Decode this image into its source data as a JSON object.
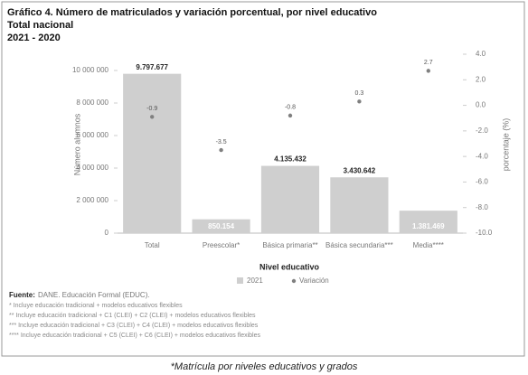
{
  "chart_data": {
    "type": "bar",
    "title": "Gráfico 4. Número de matriculados y variación porcentual, por nivel educativo",
    "subtitle": [
      "Total nacional",
      "2021 - 2020"
    ],
    "categories": [
      "Total",
      "Preescolar*",
      "Básica primaria**",
      "Básica secundaria***",
      "Media****"
    ],
    "series": [
      {
        "name": "2021",
        "color": "#cfcfcf",
        "values": [
          9797677,
          850154,
          4135432,
          3430642,
          1381469
        ],
        "value_labels": [
          "9.797.677",
          "850.154",
          "4.135.432",
          "3.430.642",
          "1.381.469"
        ]
      },
      {
        "name": "Variación",
        "color": "#808080",
        "axis": "y2",
        "values": [
          -0.9,
          -3.5,
          -0.8,
          0.3,
          2.7
        ]
      }
    ],
    "ylim": [
      0,
      11000000
    ],
    "yticks": [
      0,
      {
        "value": 2000000,
        "label": "2 000 000"
      },
      {
        "value": 4000000,
        "label": "4 000 000"
      },
      {
        "value": 6000000,
        "label": "6 000 000"
      },
      {
        "value": 8000000,
        "label": "8 000 000"
      },
      {
        "value": 10000000,
        "label": "10 000 000"
      }
    ],
    "y2lim": [
      -10,
      4
    ],
    "y2ticks": [
      {
        "value": 4,
        "label": "4.0"
      },
      {
        "value": 2,
        "label": "2.0"
      },
      {
        "value": 0,
        "label": "0.0"
      },
      {
        "value": -2,
        "label": "-2.0"
      },
      {
        "value": -4,
        "label": "-4.0"
      },
      {
        "value": -6,
        "label": "-6.0"
      },
      {
        "value": -8,
        "label": "-8.0"
      },
      {
        "value": -10,
        "label": "-10.0"
      }
    ],
    "ylabel": "Número alumnos",
    "y2label": "porcentaje (%)",
    "xlabel": "Nivel educativo",
    "legend": "bottom",
    "source": {
      "label": "Fuente:",
      "text": "DANE. Educación Formal (EDUC)."
    },
    "footnotes": [
      "* Incluye educación tradicional + modelos educativos flexibles",
      "** Incluye educación tradicional + C1 (CLEI) + C2 (CLEI) + modelos educativos flexibles",
      "*** Incluye educación tradicional + C3 (CLEI) + C4 (CLEI) + modelos educativos flexibles",
      "**** Incluye educación tradicional + C5 (CLEI) + C6 (CLEI) + modelos educativos flexibles"
    ],
    "caption": "*Matrícula por niveles educativos y grados"
  }
}
